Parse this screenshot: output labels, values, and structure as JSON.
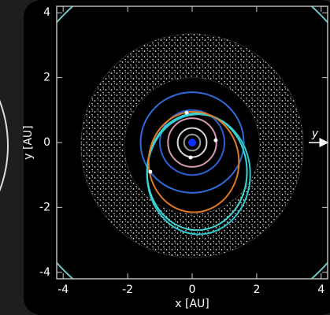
{
  "chart_data": {
    "type": "orbit",
    "xlabel": "x [AU]",
    "ylabel": "y [AU]",
    "xlim": [
      -4.2,
      4.2
    ],
    "ylim": [
      -4.2,
      4.2
    ],
    "xticks": [
      -4,
      -2,
      0,
      2,
      4
    ],
    "yticks": [
      -4,
      -2,
      0,
      2,
      4
    ],
    "annotation": "y",
    "sun": {
      "x": 0,
      "y": 0,
      "color": "#1030ff"
    },
    "belt": {
      "cx": 0,
      "cy": -0.1,
      "inner": 2.1,
      "outer": 3.45,
      "color": "#e8e8e8"
    },
    "orbits": [
      {
        "cx": 0,
        "cy": 0,
        "rx": 5.6,
        "ry": 5.6,
        "color": "#6fc7c7"
      },
      {
        "cx": 0,
        "cy": 0,
        "rx": 0.25,
        "ry": 0.25,
        "color": "#9a9a9a"
      },
      {
        "cx": 0,
        "cy": 0,
        "rx": 0.45,
        "ry": 0.45,
        "color": "#d8d8d8"
      },
      {
        "cx": 0,
        "cy": 0,
        "rx": 0.75,
        "ry": 0.75,
        "color": "#d79ab0"
      },
      {
        "cx": 0,
        "cy": 0,
        "rx": 1.0,
        "ry": 1.0,
        "color": "#2a5fd0"
      },
      {
        "cx": 0,
        "cy": 0,
        "rx": 1.6,
        "ry": 1.55,
        "color": "#2f6bd8"
      },
      {
        "cx": 0.2,
        "cy": -0.98,
        "rx": 1.6,
        "ry": 1.85,
        "color": "#2ec8d0"
      },
      {
        "cx": 0.15,
        "cy": -0.9,
        "rx": 1.55,
        "ry": 1.8,
        "color": "#3fd6d6"
      },
      {
        "cx": 0.05,
        "cy": -0.6,
        "rx": 1.4,
        "ry": 1.55,
        "color": "#e07a20"
      }
    ],
    "bodies": [
      {
        "x": -0.17,
        "y": 0.92
      },
      {
        "x": 0.73,
        "y": 0.07
      },
      {
        "x": -0.05,
        "y": -0.46
      },
      {
        "x": -1.3,
        "y": -0.9
      }
    ]
  }
}
